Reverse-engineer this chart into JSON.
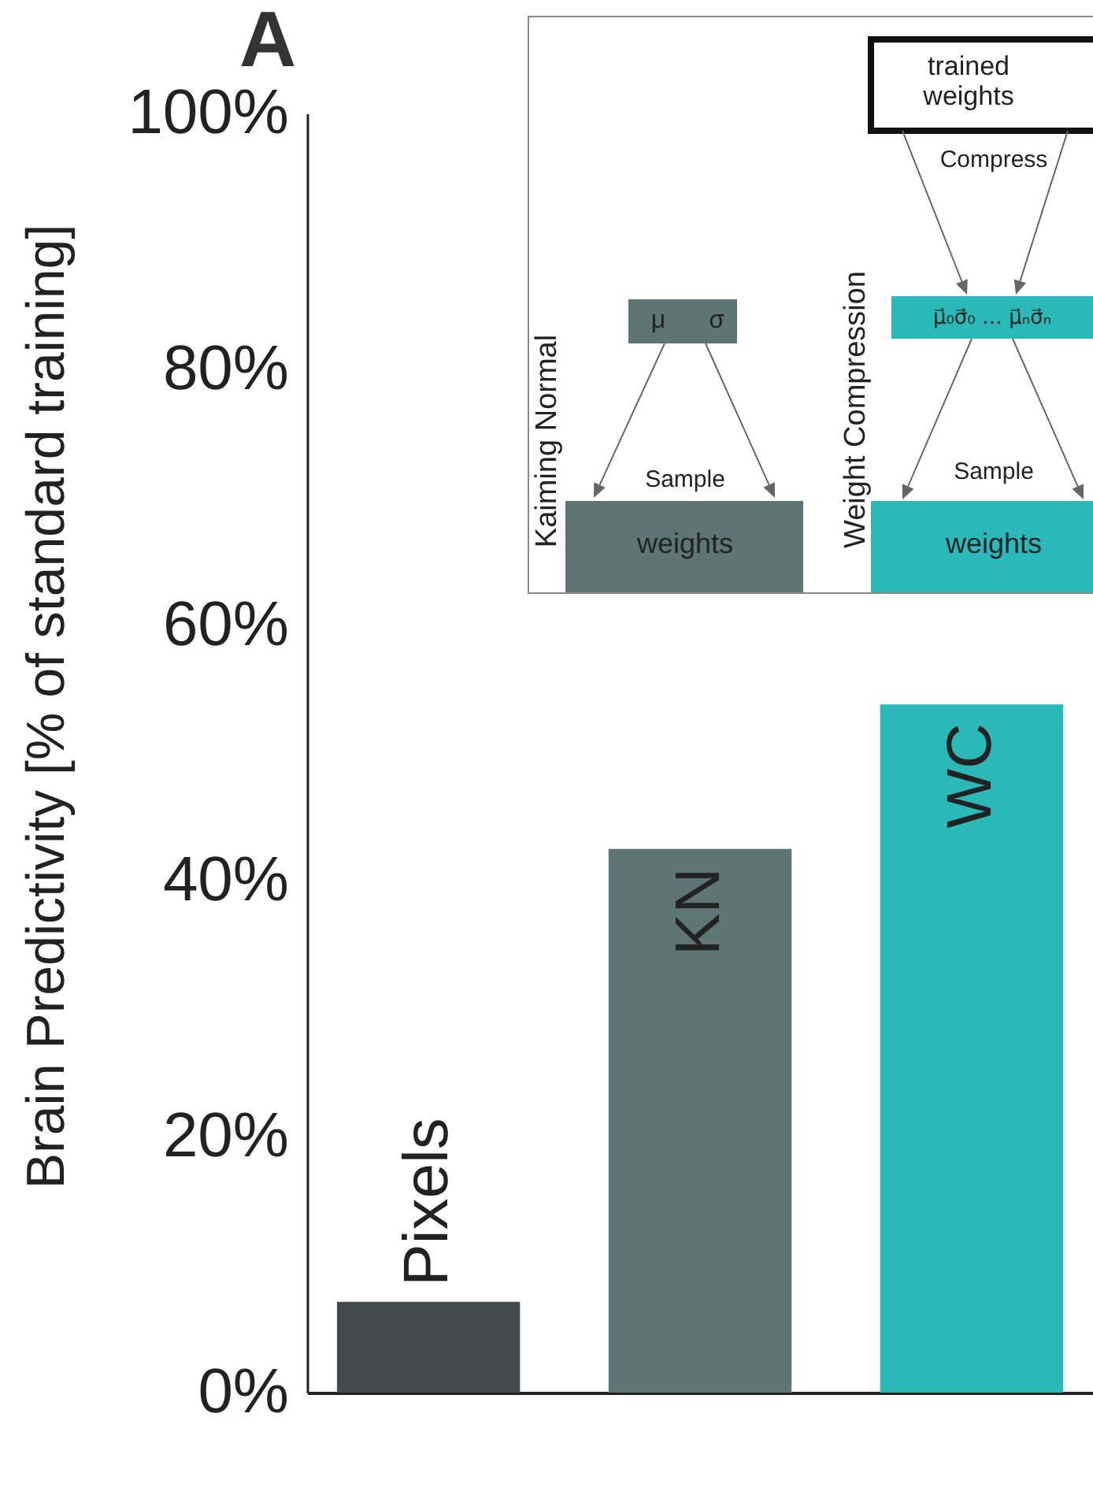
{
  "chart_data": {
    "type": "bar",
    "categories": [
      "Pixels",
      "KN",
      "WC"
    ],
    "values": [
      7.1,
      42.5,
      53.8
    ],
    "colors": [
      "#434a4a",
      "#5d7575",
      "#2bb8b8"
    ],
    "ylabel": "Brain Predictivity [% of standard training]",
    "ylim": [
      0,
      100
    ],
    "yticks": [
      {
        "value": 0,
        "label": "0%"
      },
      {
        "value": 20,
        "label": "20%"
      },
      {
        "value": 40,
        "label": "40%"
      },
      {
        "value": 60,
        "label": "60%"
      },
      {
        "value": 80,
        "label": "80%"
      },
      {
        "value": 100,
        "label": "100%"
      }
    ],
    "grid": false,
    "tick_labels": "y",
    "annotations": [
      "A",
      "Kaiming Normal",
      "Weight Compression",
      "trained weights",
      "Compress",
      "Sample",
      "Sample",
      "weights",
      "weights",
      "μ",
      "σ",
      "μ⃗₀σ⃗₀ … μ⃗ₙσ⃗ₙ"
    ]
  }
}
